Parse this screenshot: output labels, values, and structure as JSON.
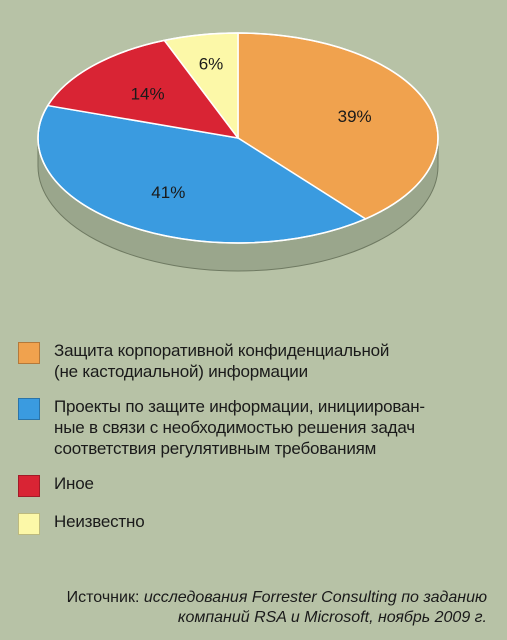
{
  "chart_data": {
    "type": "pie",
    "title": "",
    "slices": [
      {
        "label": "Защита корпоративной конфиденциальной\n(не кастодиальной) информации",
        "value": 39,
        "display": "39%",
        "color": "#f0a24e"
      },
      {
        "label": "Проекты по защите информации, инициирован-\nные в связи с необходимостью решения задач\nсоответствия регулятивным требованиям",
        "value": 41,
        "display": "41%",
        "color": "#3a9be0"
      },
      {
        "label": "Иное",
        "value": 14,
        "display": "14%",
        "color": "#d92434"
      },
      {
        "label": "Неизвестно",
        "value": 6,
        "display": "6%",
        "color": "#fcf8a8"
      }
    ],
    "legend_position": "bottom"
  },
  "source": {
    "prefix": "Источник: ",
    "line1": "исследования Forrester Consulting по заданию",
    "line2": "компаний RSA и Microsoft, ноябрь 2009 г."
  },
  "colors": {
    "background": "#b7c2a6",
    "pie_side": "#9aa68c"
  }
}
